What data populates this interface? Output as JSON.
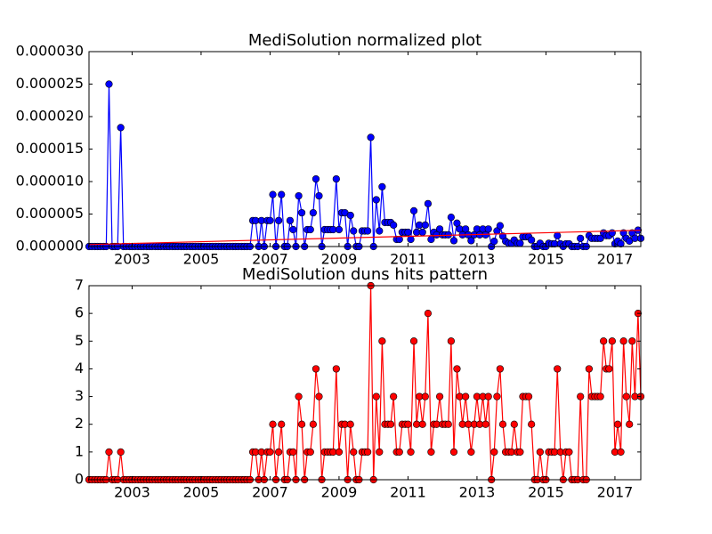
{
  "chart_data": [
    {
      "type": "line",
      "title": "MediSolution normalized plot",
      "x": [
        2001.75,
        2001.83,
        2001.92,
        2002,
        2002.08,
        2002.17,
        2002.25,
        2002.33,
        2002.42,
        2002.5,
        2002.58,
        2002.67,
        2002.75,
        2002.83,
        2002.92,
        2003,
        2003.08,
        2003.17,
        2003.25,
        2003.33,
        2003.42,
        2003.5,
        2003.58,
        2003.67,
        2003.75,
        2003.83,
        2003.92,
        2004,
        2004.08,
        2004.17,
        2004.25,
        2004.33,
        2004.42,
        2004.5,
        2004.58,
        2004.67,
        2004.75,
        2004.83,
        2004.92,
        2005,
        2005.08,
        2005.17,
        2005.25,
        2005.33,
        2005.42,
        2005.5,
        2005.58,
        2005.67,
        2005.75,
        2005.83,
        2005.92,
        2006,
        2006.08,
        2006.17,
        2006.25,
        2006.33,
        2006.42,
        2006.5,
        2006.58,
        2006.67,
        2006.75,
        2006.83,
        2006.92,
        2007,
        2007.08,
        2007.17,
        2007.25,
        2007.33,
        2007.42,
        2007.5,
        2007.58,
        2007.67,
        2007.75,
        2007.83,
        2007.92,
        2008,
        2008.08,
        2008.17,
        2008.25,
        2008.33,
        2008.42,
        2008.5,
        2008.58,
        2008.67,
        2008.75,
        2008.83,
        2008.92,
        2009,
        2009.08,
        2009.17,
        2009.25,
        2009.33,
        2009.42,
        2009.5,
        2009.58,
        2009.67,
        2009.75,
        2009.83,
        2009.92,
        2010,
        2010.08,
        2010.17,
        2010.25,
        2010.33,
        2010.42,
        2010.5,
        2010.58,
        2010.67,
        2010.75,
        2010.83,
        2010.92,
        2011,
        2011.08,
        2011.17,
        2011.25,
        2011.33,
        2011.42,
        2011.5,
        2011.58,
        2011.67,
        2011.75,
        2011.83,
        2011.92,
        2012,
        2012.08,
        2012.17,
        2012.25,
        2012.33,
        2012.42,
        2012.5,
        2012.58,
        2012.67,
        2012.75,
        2012.83,
        2012.92,
        2013,
        2013.08,
        2013.17,
        2013.25,
        2013.33,
        2013.42,
        2013.5,
        2013.58,
        2013.67,
        2013.75,
        2013.83,
        2013.92,
        2014,
        2014.08,
        2014.17,
        2014.25,
        2014.33,
        2014.42,
        2014.5,
        2014.58,
        2014.67,
        2014.75,
        2014.83,
        2014.92,
        2015,
        2015.08,
        2015.17,
        2015.25,
        2015.33,
        2015.42,
        2015.5,
        2015.58,
        2015.67,
        2015.75,
        2015.83,
        2015.92,
        2016,
        2016.08,
        2016.17,
        2016.25,
        2016.33,
        2016.42,
        2016.5,
        2016.58,
        2016.67,
        2016.75,
        2016.83,
        2016.92,
        2017,
        2017.08,
        2017.17,
        2017.25,
        2017.33,
        2017.42,
        2017.5,
        2017.58,
        2017.67,
        2017.75
      ],
      "series": [
        {
          "color": "#0000ff",
          "markers": true,
          "marker_edge": "#000000",
          "values": [
            0,
            0,
            0,
            0,
            0,
            0,
            0,
            2.5e-05,
            0,
            0,
            0,
            1.83e-05,
            0,
            0,
            0,
            0,
            0,
            0,
            0,
            0,
            0,
            0,
            0,
            0,
            0,
            0,
            0,
            0,
            0,
            0,
            0,
            0,
            0,
            0,
            0,
            0,
            0,
            0,
            0,
            0,
            0,
            0,
            0,
            0,
            0,
            0,
            0,
            0,
            0,
            0,
            0,
            0,
            0,
            0,
            0,
            0,
            0,
            4e-06,
            4e-06,
            0,
            4e-06,
            0,
            4e-06,
            4e-06,
            8e-06,
            0,
            4e-06,
            8e-06,
            0,
            0,
            4e-06,
            2.6e-06,
            0,
            7.8e-06,
            5.2e-06,
            0,
            2.6e-06,
            2.6e-06,
            5.2e-06,
            1.04e-05,
            7.8e-06,
            0,
            2.6e-06,
            2.6e-06,
            2.6e-06,
            2.6e-06,
            1.04e-05,
            2.6e-06,
            5.2e-06,
            5.2e-06,
            0,
            4.8e-06,
            2.4e-06,
            0,
            0,
            2.4e-06,
            2.4e-06,
            2.4e-06,
            1.68e-05,
            0,
            7.2e-06,
            2.4e-06,
            9.2e-06,
            3.7e-06,
            3.7e-06,
            3.7e-06,
            3.3e-06,
            1.1e-06,
            1.1e-06,
            2.2e-06,
            2.2e-06,
            2.2e-06,
            1.1e-06,
            5.5e-06,
            2.2e-06,
            3.3e-06,
            2.2e-06,
            3.3e-06,
            6.6e-06,
            1.1e-06,
            2.2e-06,
            1.8e-06,
            2.7e-06,
            1.8e-06,
            1.8e-06,
            1.8e-06,
            4.5e-06,
            9e-07,
            3.6e-06,
            2.7e-06,
            1.8e-06,
            2.7e-06,
            1.8e-06,
            9e-07,
            1.8e-06,
            2.7e-06,
            1.8e-06,
            2.7e-06,
            1.8e-06,
            2.7e-06,
            0,
            8e-07,
            2.4e-06,
            3.2e-06,
            1.6e-06,
            8e-07,
            5e-07,
            5e-07,
            1e-06,
            5e-07,
            5e-07,
            1.5e-06,
            1.5e-06,
            1.5e-06,
            1e-06,
            0,
            0,
            5e-07,
            0,
            0,
            5e-07,
            4.2e-07,
            4.2e-07,
            1.68e-06,
            4.2e-07,
            0,
            4.2e-07,
            4.2e-07,
            0,
            0,
            0,
            1.26e-06,
            0,
            0,
            1.68e-06,
            1.26e-06,
            1.26e-06,
            1.26e-06,
            1.26e-06,
            2.1e-06,
            1.68e-06,
            1.68e-06,
            2.1e-06,
            4.2e-07,
            8.4e-07,
            4.2e-07,
            2.1e-06,
            1.26e-06,
            8.4e-07,
            2.1e-06,
            1.26e-06,
            2.52e-06,
            1.26e-06
          ]
        },
        {
          "color": "#ff0000",
          "markers": false,
          "x": [
            2001.75,
            2017.75
          ],
          "values": [
            3e-07,
            2.5e-06
          ]
        }
      ],
      "xlim": [
        2001.75,
        2017.75
      ],
      "xticks": [
        2003,
        2005,
        2007,
        2009,
        2011,
        2013,
        2015,
        2017
      ],
      "ylim": [
        0,
        3e-05
      ],
      "yticks": [
        {
          "value": 0,
          "label": "0.000000"
        },
        {
          "value": 5e-06,
          "label": "0.000005"
        },
        {
          "value": 1e-05,
          "label": "0.000010"
        },
        {
          "value": 1.5e-05,
          "label": "0.000015"
        },
        {
          "value": 2e-05,
          "label": "0.000020"
        },
        {
          "value": 2.5e-05,
          "label": "0.000025"
        },
        {
          "value": 3e-05,
          "label": "0.000030"
        }
      ]
    },
    {
      "type": "line",
      "title": "MediSolution duns hits pattern",
      "x": [
        2001.75,
        2001.83,
        2001.92,
        2002,
        2002.08,
        2002.17,
        2002.25,
        2002.33,
        2002.42,
        2002.5,
        2002.58,
        2002.67,
        2002.75,
        2002.83,
        2002.92,
        2003,
        2003.08,
        2003.17,
        2003.25,
        2003.33,
        2003.42,
        2003.5,
        2003.58,
        2003.67,
        2003.75,
        2003.83,
        2003.92,
        2004,
        2004.08,
        2004.17,
        2004.25,
        2004.33,
        2004.42,
        2004.5,
        2004.58,
        2004.67,
        2004.75,
        2004.83,
        2004.92,
        2005,
        2005.08,
        2005.17,
        2005.25,
        2005.33,
        2005.42,
        2005.5,
        2005.58,
        2005.67,
        2005.75,
        2005.83,
        2005.92,
        2006,
        2006.08,
        2006.17,
        2006.25,
        2006.33,
        2006.42,
        2006.5,
        2006.58,
        2006.67,
        2006.75,
        2006.83,
        2006.92,
        2007,
        2007.08,
        2007.17,
        2007.25,
        2007.33,
        2007.42,
        2007.5,
        2007.58,
        2007.67,
        2007.75,
        2007.83,
        2007.92,
        2008,
        2008.08,
        2008.17,
        2008.25,
        2008.33,
        2008.42,
        2008.5,
        2008.58,
        2008.67,
        2008.75,
        2008.83,
        2008.92,
        2009,
        2009.08,
        2009.17,
        2009.25,
        2009.33,
        2009.42,
        2009.5,
        2009.58,
        2009.67,
        2009.75,
        2009.83,
        2009.92,
        2010,
        2010.08,
        2010.17,
        2010.25,
        2010.33,
        2010.42,
        2010.5,
        2010.58,
        2010.67,
        2010.75,
        2010.83,
        2010.92,
        2011,
        2011.08,
        2011.17,
        2011.25,
        2011.33,
        2011.42,
        2011.5,
        2011.58,
        2011.67,
        2011.75,
        2011.83,
        2011.92,
        2012,
        2012.08,
        2012.17,
        2012.25,
        2012.33,
        2012.42,
        2012.5,
        2012.58,
        2012.67,
        2012.75,
        2012.83,
        2012.92,
        2013,
        2013.08,
        2013.17,
        2013.25,
        2013.33,
        2013.42,
        2013.5,
        2013.58,
        2013.67,
        2013.75,
        2013.83,
        2013.92,
        2014,
        2014.08,
        2014.17,
        2014.25,
        2014.33,
        2014.42,
        2014.5,
        2014.58,
        2014.67,
        2014.75,
        2014.83,
        2014.92,
        2015,
        2015.08,
        2015.17,
        2015.25,
        2015.33,
        2015.42,
        2015.5,
        2015.58,
        2015.67,
        2015.75,
        2015.83,
        2015.92,
        2016,
        2016.08,
        2016.17,
        2016.25,
        2016.33,
        2016.42,
        2016.5,
        2016.58,
        2016.67,
        2016.75,
        2016.83,
        2016.92,
        2017,
        2017.08,
        2017.17,
        2017.25,
        2017.33,
        2017.42,
        2017.5,
        2017.58,
        2017.67,
        2017.75
      ],
      "series": [
        {
          "color": "#ff0000",
          "markers": true,
          "marker_edge": "#000000",
          "values": [
            0,
            0,
            0,
            0,
            0,
            0,
            0,
            1,
            0,
            0,
            0,
            1,
            0,
            0,
            0,
            0,
            0,
            0,
            0,
            0,
            0,
            0,
            0,
            0,
            0,
            0,
            0,
            0,
            0,
            0,
            0,
            0,
            0,
            0,
            0,
            0,
            0,
            0,
            0,
            0,
            0,
            0,
            0,
            0,
            0,
            0,
            0,
            0,
            0,
            0,
            0,
            0,
            0,
            0,
            0,
            0,
            0,
            1,
            1,
            0,
            1,
            0,
            1,
            1,
            2,
            0,
            1,
            2,
            0,
            0,
            1,
            1,
            0,
            3,
            2,
            0,
            1,
            1,
            2,
            4,
            3,
            0,
            1,
            1,
            1,
            1,
            4,
            1,
            2,
            2,
            0,
            2,
            1,
            0,
            0,
            1,
            1,
            1,
            7,
            0,
            3,
            1,
            5,
            2,
            2,
            2,
            3,
            1,
            1,
            2,
            2,
            2,
            1,
            5,
            2,
            3,
            2,
            3,
            6,
            1,
            2,
            2,
            3,
            2,
            2,
            2,
            5,
            1,
            4,
            3,
            2,
            3,
            2,
            1,
            2,
            3,
            2,
            3,
            2,
            3,
            0,
            1,
            3,
            4,
            2,
            1,
            1,
            1,
            2,
            1,
            1,
            3,
            3,
            3,
            2,
            0,
            0,
            1,
            0,
            0,
            1,
            1,
            1,
            4,
            1,
            0,
            1,
            1,
            0,
            0,
            0,
            3,
            0,
            0,
            4,
            3,
            3,
            3,
            3,
            5,
            4,
            4,
            5,
            1,
            2,
            1,
            5,
            3,
            2,
            5,
            3,
            6,
            3
          ]
        }
      ],
      "xlim": [
        2001.75,
        2017.75
      ],
      "xticks": [
        2003,
        2005,
        2007,
        2009,
        2011,
        2013,
        2015,
        2017
      ],
      "ylim": [
        0,
        7
      ],
      "yticks": [
        0,
        1,
        2,
        3,
        4,
        5,
        6,
        7
      ]
    }
  ]
}
